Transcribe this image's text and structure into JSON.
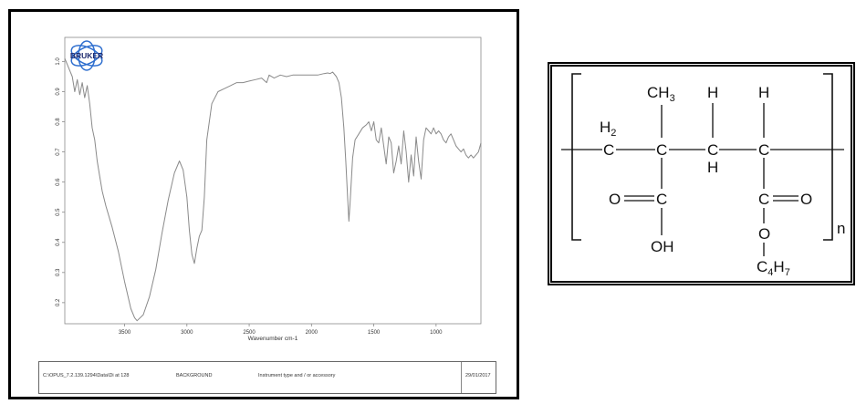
{
  "chart_data": {
    "type": "line",
    "title": "",
    "xlabel": "Wavenumber cm-1",
    "ylabel": "",
    "xlim": [
      3980,
      640
    ],
    "ylim": [
      0.13,
      1.08
    ],
    "x_reversed": true,
    "x_ticks": [
      "3500",
      "3000",
      "2500",
      "2000",
      "1500",
      "1000"
    ],
    "x_tick_values": [
      3500,
      3000,
      2500,
      2000,
      1500,
      1000
    ],
    "y_ticks": [
      "0.2",
      "0.3",
      "0.4",
      "0.5",
      "0.6",
      "0.7",
      "0.8",
      "0.9",
      "1.0"
    ],
    "y_tick_values": [
      0.2,
      0.3,
      0.4,
      0.5,
      0.6,
      0.7,
      0.8,
      0.9,
      1.0
    ],
    "line_color": "#8a8a8a",
    "grid": false,
    "series": [
      {
        "x": [
          3980,
          3950,
          3920,
          3900,
          3880,
          3860,
          3840,
          3820,
          3800,
          3780,
          3760,
          3740,
          3720,
          3700,
          3680,
          3650,
          3600,
          3550,
          3500,
          3450,
          3420,
          3400,
          3350,
          3300,
          3250,
          3200,
          3150,
          3100,
          3060,
          3030,
          3000,
          2980,
          2960,
          2940,
          2920,
          2900,
          2880,
          2860,
          2840,
          2800,
          2750,
          2700,
          2650,
          2600,
          2550,
          2500,
          2450,
          2400,
          2360,
          2340,
          2300,
          2250,
          2200,
          2150,
          2100,
          2050,
          2000,
          1950,
          1900,
          1870,
          1850,
          1830,
          1800,
          1780,
          1760,
          1740,
          1725,
          1710,
          1700,
          1690,
          1670,
          1650,
          1620,
          1590,
          1560,
          1540,
          1520,
          1500,
          1480,
          1460,
          1440,
          1420,
          1400,
          1380,
          1360,
          1340,
          1320,
          1300,
          1280,
          1260,
          1240,
          1220,
          1200,
          1180,
          1160,
          1140,
          1120,
          1100,
          1080,
          1060,
          1040,
          1020,
          1000,
          980,
          960,
          940,
          920,
          900,
          880,
          860,
          840,
          820,
          800,
          780,
          760,
          740,
          720,
          700,
          680,
          660,
          640
        ],
        "y": [
          1.01,
          0.98,
          0.95,
          0.9,
          0.94,
          0.89,
          0.93,
          0.88,
          0.92,
          0.86,
          0.78,
          0.74,
          0.67,
          0.62,
          0.57,
          0.52,
          0.45,
          0.37,
          0.27,
          0.18,
          0.15,
          0.14,
          0.16,
          0.22,
          0.31,
          0.43,
          0.54,
          0.63,
          0.67,
          0.64,
          0.55,
          0.44,
          0.36,
          0.33,
          0.38,
          0.42,
          0.44,
          0.55,
          0.74,
          0.86,
          0.9,
          0.91,
          0.92,
          0.93,
          0.93,
          0.935,
          0.94,
          0.945,
          0.93,
          0.955,
          0.945,
          0.955,
          0.95,
          0.955,
          0.955,
          0.955,
          0.955,
          0.955,
          0.96,
          0.962,
          0.96,
          0.965,
          0.95,
          0.93,
          0.88,
          0.78,
          0.67,
          0.55,
          0.47,
          0.53,
          0.68,
          0.74,
          0.76,
          0.78,
          0.79,
          0.8,
          0.77,
          0.8,
          0.74,
          0.73,
          0.78,
          0.72,
          0.66,
          0.75,
          0.73,
          0.63,
          0.67,
          0.72,
          0.66,
          0.77,
          0.7,
          0.6,
          0.69,
          0.62,
          0.75,
          0.67,
          0.61,
          0.74,
          0.78,
          0.77,
          0.76,
          0.78,
          0.76,
          0.77,
          0.76,
          0.74,
          0.73,
          0.75,
          0.76,
          0.74,
          0.72,
          0.71,
          0.7,
          0.71,
          0.69,
          0.68,
          0.69,
          0.68,
          0.69,
          0.7,
          0.73
        ]
      }
    ]
  },
  "logo": {
    "text": "BRUKER",
    "color": "#2f6fcf"
  },
  "footer": {
    "path_text": "C:\\OPUS_7.2.139.1294\\Data\\Di  at 128",
    "label": "BACKGROUND",
    "instrument": "Instrument type and / or accessory",
    "date": "29/01/2017"
  },
  "structure": {
    "open_bracket": "[",
    "close_bracket": "]",
    "repeat_n": "n",
    "ch3": "CH",
    "ch3_sub": "3",
    "h2": "H",
    "h2_sub": "2",
    "c": "C",
    "h": "H",
    "o": "O",
    "oh": "OH",
    "c4": "C",
    "c4_sub": "4",
    "h7": "H",
    "h7_sub": "7"
  }
}
